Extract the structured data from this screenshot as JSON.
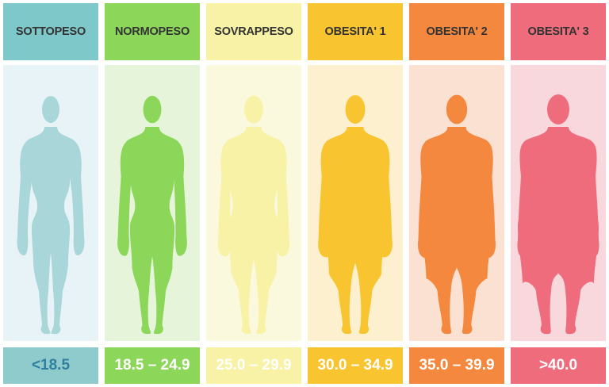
{
  "categories": [
    {
      "label": "SOTTOPESO",
      "range": "<18.5",
      "header_color": "#7fc8c9",
      "panel_color": "#e8f3f7",
      "figure_color": "#a9d6d8",
      "range_bg": "#8fcbcc",
      "range_text_color": "#2f7f9e",
      "build": 0.0
    },
    {
      "label": "NORMOPESO",
      "range": "18.5 – 24.9",
      "header_color": "#8cd65a",
      "panel_color": "#e6f5d9",
      "figure_color": "#8cd65a",
      "range_bg": "#8cd65a",
      "range_text_color": "#ffffff",
      "build": 0.15
    },
    {
      "label": "SOVRAPPESO",
      "range": "25.0 – 29.9",
      "header_color": "#f7f2a6",
      "panel_color": "#fbf9dd",
      "figure_color": "#f7f2a6",
      "range_bg": "#f7f2a6",
      "range_text_color": "#ffffff",
      "build": 0.3
    },
    {
      "label": "OBESITA' 1",
      "range": "30.0 – 34.9",
      "header_color": "#f8c530",
      "panel_color": "#fdf0cf",
      "figure_color": "#f8c530",
      "range_bg": "#f8c530",
      "range_text_color": "#ffffff",
      "build": 0.48
    },
    {
      "label": "OBESITA' 2",
      "range": "35.0 – 39.9",
      "header_color": "#f3883e",
      "panel_color": "#fbe1d1",
      "figure_color": "#f3883e",
      "range_bg": "#f3883e",
      "range_text_color": "#ffffff",
      "build": 0.72
    },
    {
      "label": "OBESITA' 3",
      "range": ">40.0",
      "header_color": "#ee6c7c",
      "panel_color": "#f8d8dc",
      "figure_color": "#ee6c7c",
      "range_bg": "#ee6c7c",
      "range_text_color": "#ffffff",
      "build": 1.0
    }
  ]
}
